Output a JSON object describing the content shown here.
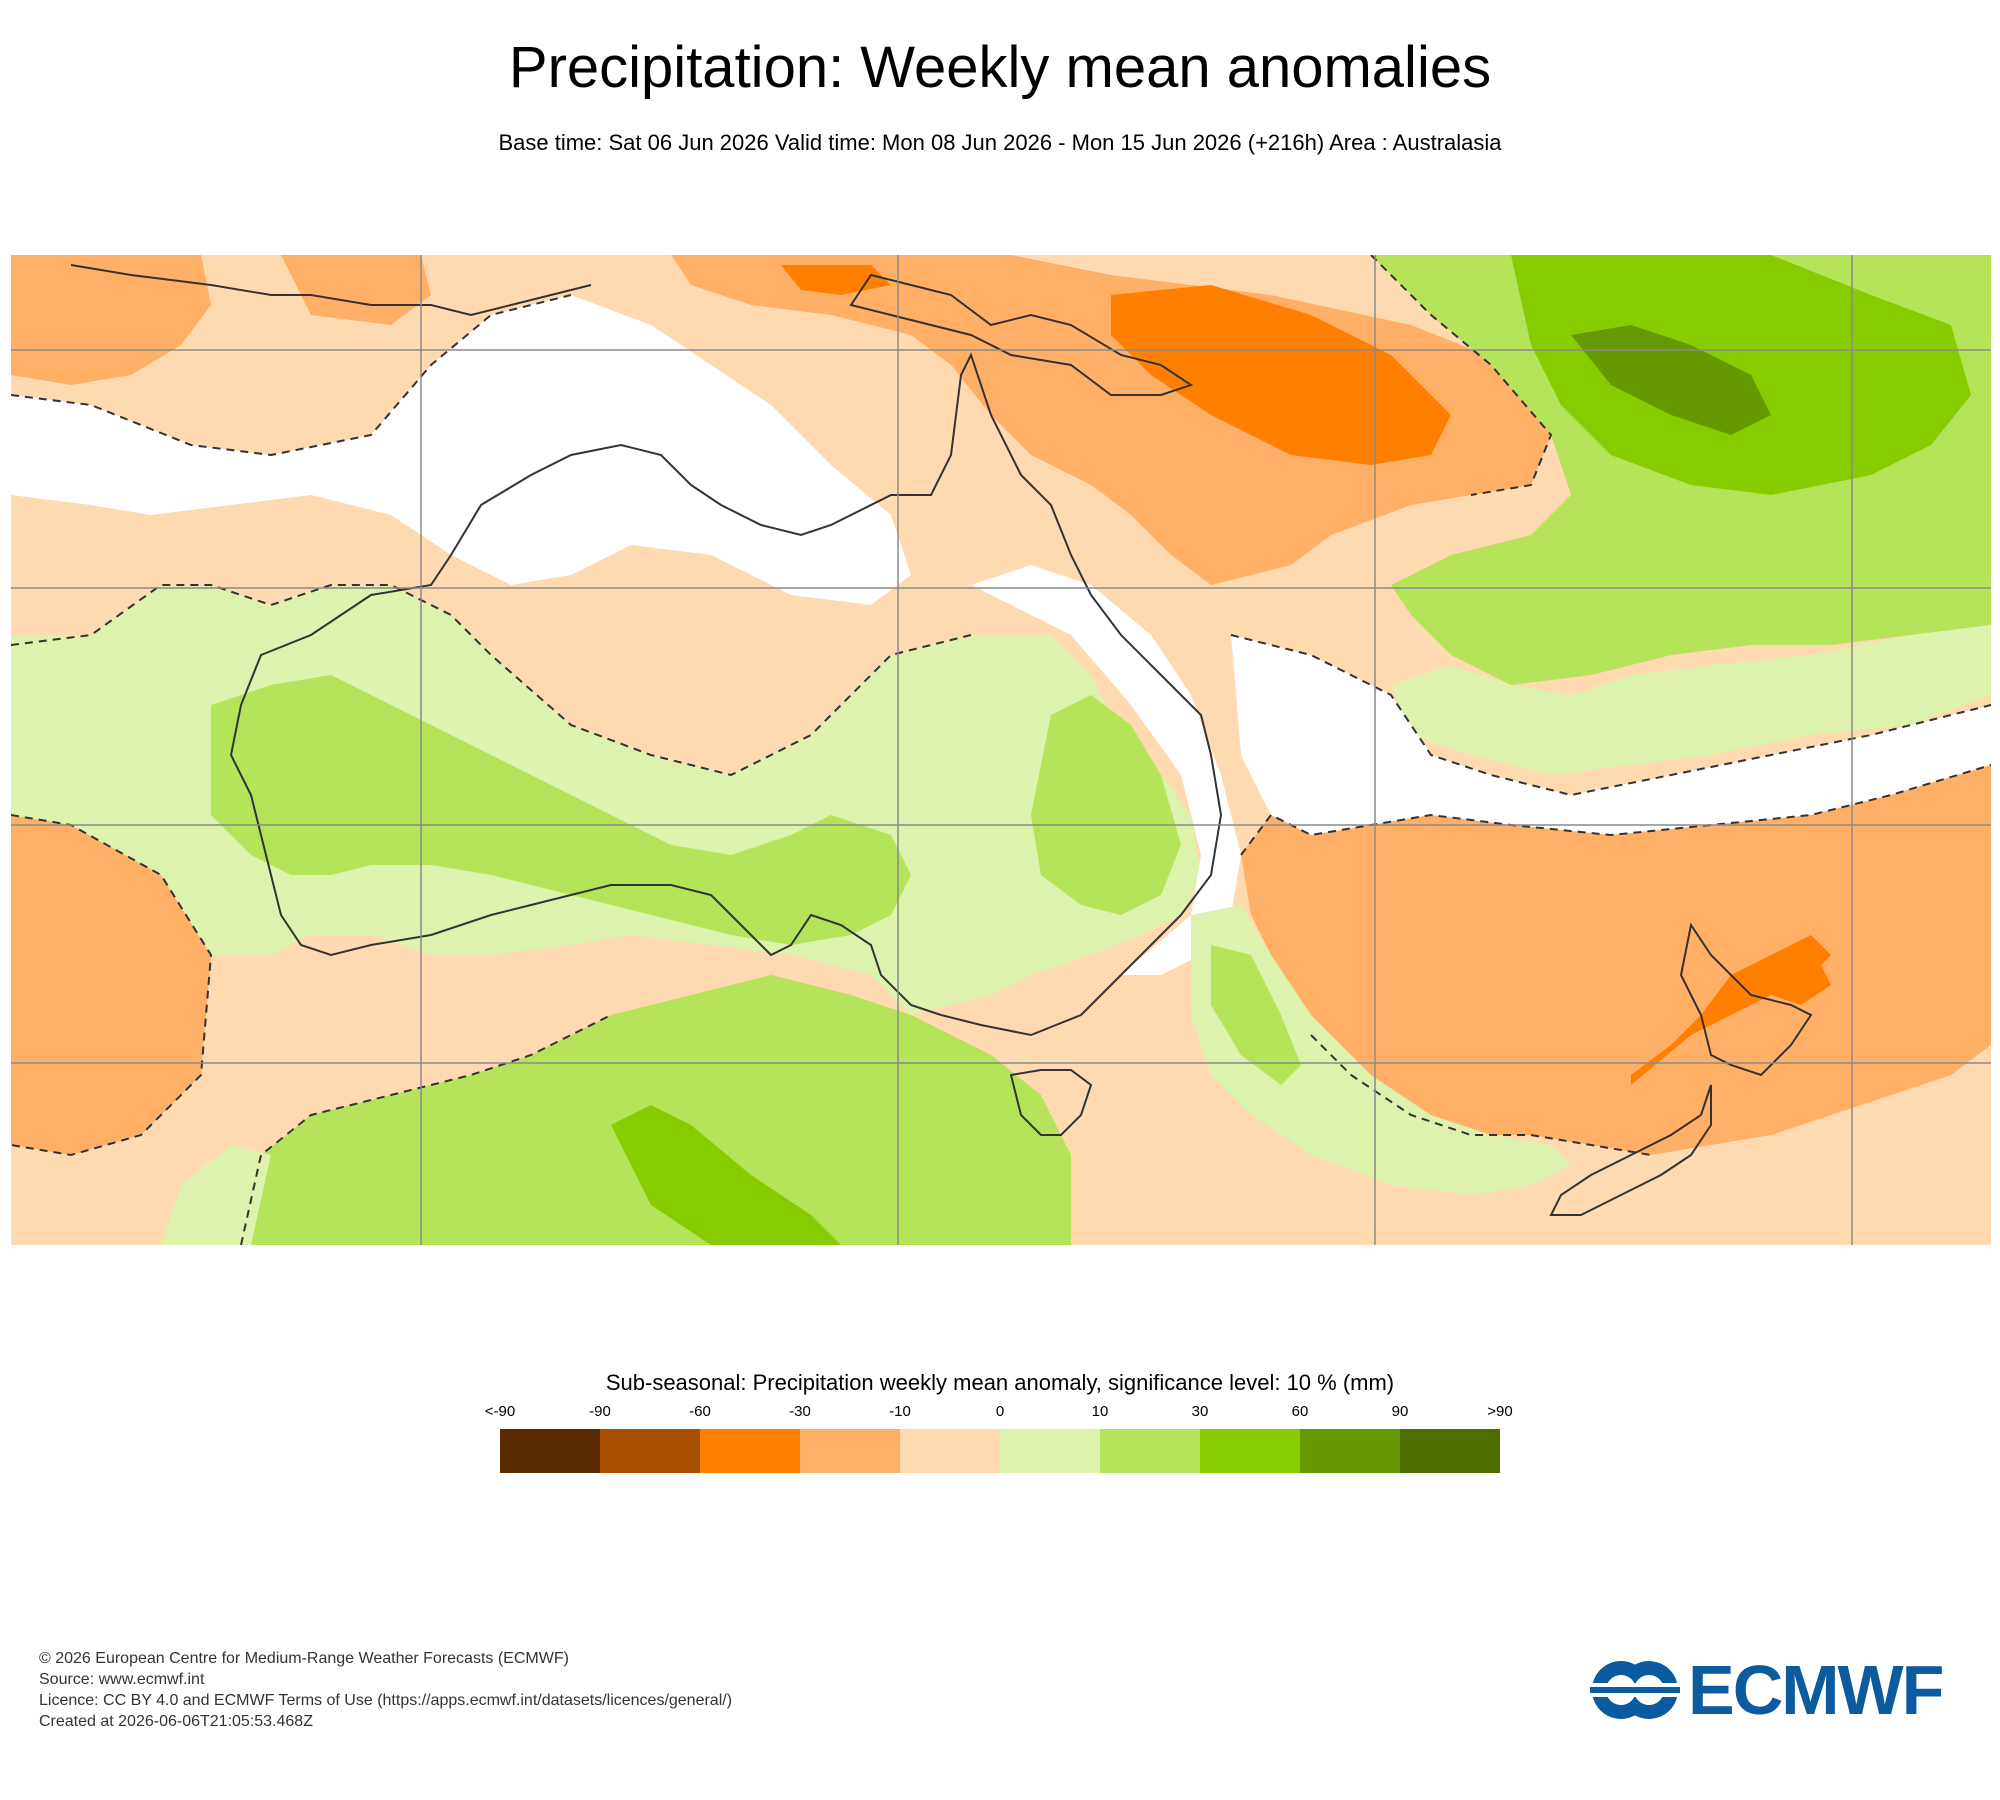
{
  "title": "Precipitation: Weekly mean anomalies",
  "subtitle": "Base time: Sat 06 Jun 2026 Valid time: Mon 08 Jun 2026 - Mon 15 Jun 2026 (+216h) Area : Australasia",
  "legend": {
    "title": "Sub-seasonal: Precipitation weekly mean anomaly, significance level: 10 % (mm)",
    "ticks": [
      "<-90",
      "-90",
      "-60",
      "-30",
      "-10",
      "0",
      "10",
      "30",
      "60",
      "90",
      ">90"
    ],
    "colors": [
      "#5c2a00",
      "#a84e00",
      "#ff7f00",
      "#ffb066",
      "#ffd9b0",
      "#ddf2ac",
      "#b5e35a",
      "#88cc00",
      "#669900",
      "#4f6e00"
    ]
  },
  "map": {
    "colors": {
      "ocean_neutral": "#ffffff",
      "dry_weak": "#ffd9b0",
      "dry_moderate": "#ffb066",
      "dry_strong": "#ff7f00",
      "wet_weak": "#ddf2ac",
      "wet_moderate": "#b5e35a",
      "wet_strong": "#88cc00",
      "wet_very_strong": "#669900",
      "coastline": "#333333",
      "gridline": "#8a8a8a"
    }
  },
  "footer": {
    "line1": "© 2026 European Centre for Medium-Range Weather Forecasts (ECMWF)",
    "line2": "Source: www.ecmwf.int",
    "line3": "Licence: CC BY 4.0 and ECMWF Terms of Use (https://apps.ecmwf.int/datasets/licences/general/)",
    "line4": "Created at 2026-06-06T21:05:53.468Z"
  },
  "logo": {
    "text": "ECMWF",
    "color": "#0b5b9e"
  }
}
